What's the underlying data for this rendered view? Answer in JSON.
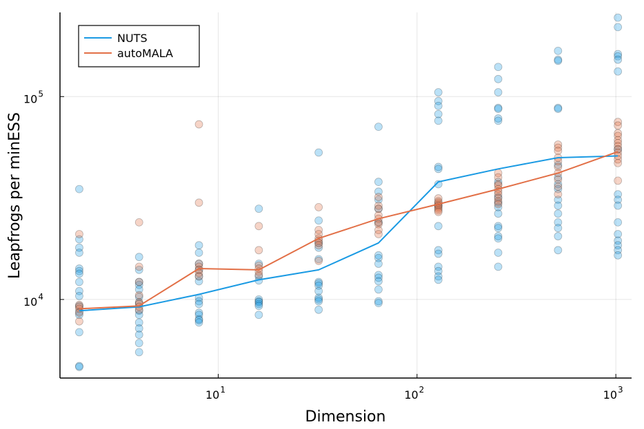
{
  "chart_data": {
    "type": "scatter",
    "title": "",
    "xlabel": "Dimension",
    "ylabel": "Leapfrogs per minESS",
    "x_scale": "log",
    "y_scale": "log",
    "xlim": [
      1.6,
      1200
    ],
    "ylim": [
      4100,
      260000
    ],
    "grid": true,
    "legend_position": "top-left",
    "x_ticks": [
      {
        "value": 10,
        "base": "10",
        "exp": "1"
      },
      {
        "value": 100,
        "base": "10",
        "exp": "2"
      },
      {
        "value": 1000,
        "base": "10",
        "exp": "3"
      }
    ],
    "y_ticks": [
      {
        "value": 10000,
        "base": "10",
        "exp": "4"
      },
      {
        "value": 100000,
        "base": "10",
        "exp": "5"
      }
    ],
    "series": [
      {
        "name": "NUTS",
        "color": "#1a9ae3",
        "line": {
          "x": [
            2,
            4,
            8,
            16,
            32,
            64,
            128,
            256,
            512,
            1024
          ],
          "y": [
            8800,
            9200,
            10600,
            12500,
            14000,
            19000,
            38000,
            44000,
            50000,
            51000
          ]
        },
        "points": [
          {
            "x": 2,
            "y": [
              35000,
              19800,
              18000,
              17000,
              14200,
              13800,
              13400,
              12200,
              11000,
              10400,
              9300,
              8700,
              8400,
              6900,
              4700,
              4650
            ]
          },
          {
            "x": 4,
            "y": [
              16200,
              14000,
              12200,
              11800,
              11200,
              10300,
              9600,
              8800,
              8400,
              7700,
              7200,
              6700,
              6100,
              5500
            ]
          },
          {
            "x": 8,
            "y": [
              18500,
              17000,
              15000,
              14000,
              13000,
              12300,
              10200,
              9800,
              9500,
              8600,
              8400,
              8000,
              7900,
              7700
            ]
          },
          {
            "x": 16,
            "y": [
              28000,
              15000,
              13000,
              12400,
              10000,
              9800,
              9700,
              9500,
              9300,
              8400
            ]
          },
          {
            "x": 32,
            "y": [
              53000,
              24500,
              19000,
              18000,
              15800,
              12200,
              12000,
              11700,
              11000,
              10200,
              10000,
              9800,
              8900
            ]
          },
          {
            "x": 64,
            "y": [
              71000,
              38000,
              34000,
              31000,
              28000,
              24000,
              16500,
              16000,
              15000,
              13200,
              12800,
              12300,
              11200,
              9800,
              9600
            ]
          },
          {
            "x": 128,
            "y": [
              105000,
              95000,
              90000,
              82000,
              76000,
              45000,
              44000,
              37000,
              29000,
              23000,
              17500,
              16800,
              14500,
              13800,
              13000,
              12500
            ]
          },
          {
            "x": 256,
            "y": [
              140000,
              122000,
              105000,
              88000,
              87000,
              78000,
              76000,
              38000,
              32000,
              30000,
              28500,
              26500,
              23000,
              22500,
              20500,
              20000,
              17000,
              14500
            ]
          },
          {
            "x": 512,
            "y": [
              168000,
              152000,
              150000,
              88000,
              87000,
              46000,
              40000,
              37000,
              35000,
              31000,
              29000,
              26500,
              24000,
              22500,
              20500,
              17500
            ]
          },
          {
            "x": 1024,
            "y": [
              245000,
              220000,
              162000,
              158000,
              152000,
              133000,
              55000,
              33000,
              31000,
              29000,
              24000,
              21000,
              19500,
              18500,
              17500,
              16500
            ]
          }
        ]
      },
      {
        "name": "autoMALA",
        "color": "#e26f46",
        "line": {
          "x": [
            2,
            4,
            8,
            16,
            32,
            64,
            128,
            256,
            512,
            1024
          ],
          "y": [
            9000,
            9300,
            14200,
            14000,
            20000,
            25000,
            29500,
            35000,
            42000,
            53500
          ]
        },
        "points": [
          {
            "x": 2,
            "y": [
              21000,
              9400,
              9200,
              9000,
              8600,
              7800
            ]
          },
          {
            "x": 4,
            "y": [
              24000,
              14500,
              12200,
              10500,
              9700,
              9500,
              9200,
              8900
            ]
          },
          {
            "x": 8,
            "y": [
              73000,
              30000,
              15000,
              14500,
              14000,
              13500,
              13000
            ]
          },
          {
            "x": 16,
            "y": [
              23000,
              17500,
              14700,
              14200,
              13700,
              13200
            ]
          },
          {
            "x": 32,
            "y": [
              28500,
              22000,
              21000,
              20000,
              19500,
              19000,
              18500,
              15500
            ]
          },
          {
            "x": 64,
            "y": [
              32000,
              29000,
              28000,
              26000,
              25000,
              24000,
              23500,
              22000,
              21000
            ]
          },
          {
            "x": 128,
            "y": [
              31500,
              30500,
              30000,
              29500,
              29000,
              28500,
              28000,
              27500,
              27000
            ]
          },
          {
            "x": 256,
            "y": [
              42000,
              40000,
              37000,
              36500,
              35000,
              34000,
              33000,
              31500,
              30500,
              29500
            ]
          },
          {
            "x": 512,
            "y": [
              58000,
              56000,
              54000,
              50000,
              48000,
              45000,
              42000,
              39000,
              36000,
              33000
            ]
          },
          {
            "x": 1024,
            "y": [
              75000,
              72000,
              66000,
              64000,
              61000,
              59000,
              57000,
              55000,
              53000,
              51000,
              49000,
              47000,
              38500
            ]
          }
        ]
      }
    ]
  }
}
